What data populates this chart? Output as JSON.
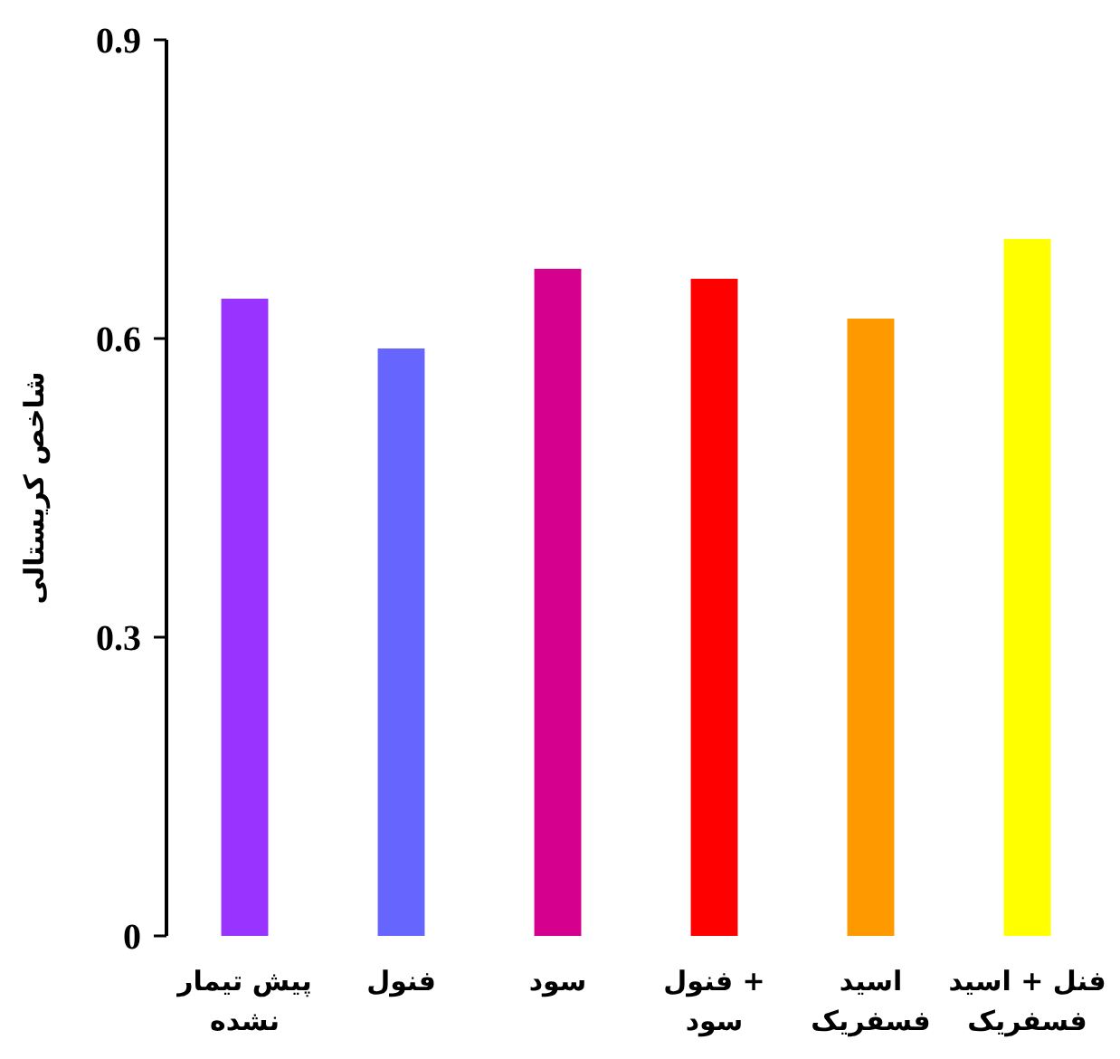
{
  "chart_data": {
    "type": "bar",
    "ylabel": "شاخص کریستالی",
    "categories": [
      "پیش تیمار\nنشده",
      "فنول",
      "سود",
      "فنول +\nسود",
      "اسید\nفسفریک",
      "فنل + اسید\nفسفریک"
    ],
    "values": [
      0.64,
      0.59,
      0.67,
      0.66,
      0.62,
      0.7
    ],
    "colors": [
      "#9933ff",
      "#6666ff",
      "#d6008f",
      "#ff0000",
      "#ff9900",
      "#ffff00"
    ],
    "ylim": [
      0,
      0.9
    ],
    "yticks": [
      0,
      0.3,
      0.6,
      0.9
    ],
    "grid": false
  }
}
